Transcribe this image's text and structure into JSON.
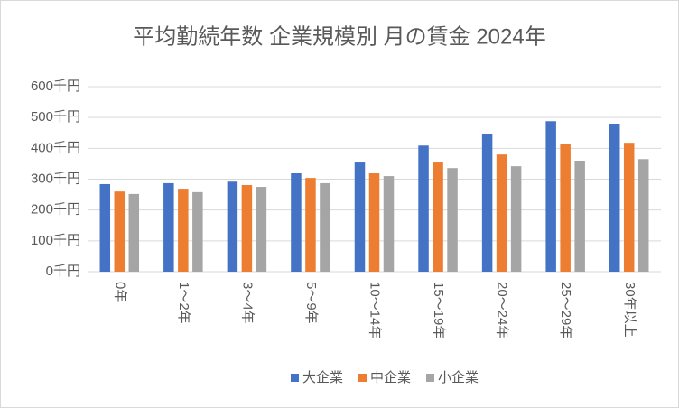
{
  "chart_data": {
    "type": "bar",
    "title": "平均勤続年数 企業規模別 月の賃金 2024年",
    "categories": [
      "0年",
      "1～2年",
      "3～4年",
      "5～9年",
      "10～14年",
      "15～19年",
      "20～24年",
      "25～29年",
      "30年以上"
    ],
    "series": [
      {
        "name": "大企業",
        "color": "#4472c4",
        "values": [
          284,
          287,
          292,
          319,
          354,
          409,
          447,
          488,
          480
        ]
      },
      {
        "name": "中企業",
        "color": "#ed7d31",
        "values": [
          260,
          269,
          281,
          304,
          319,
          354,
          380,
          415,
          418
        ]
      },
      {
        "name": "小企業",
        "color": "#a5a5a5",
        "values": [
          252,
          258,
          275,
          287,
          310,
          336,
          342,
          360,
          365
        ]
      }
    ],
    "ylim": [
      0,
      600
    ],
    "yticks": [
      {
        "value": 0,
        "label": "0千円"
      },
      {
        "value": 100,
        "label": "100千円"
      },
      {
        "value": 200,
        "label": "200千円"
      },
      {
        "value": 300,
        "label": "300千円"
      },
      {
        "value": 400,
        "label": "400千円"
      },
      {
        "value": 500,
        "label": "500千円"
      },
      {
        "value": 600,
        "label": "600千円"
      }
    ],
    "grid": true,
    "legend": "bottom"
  }
}
